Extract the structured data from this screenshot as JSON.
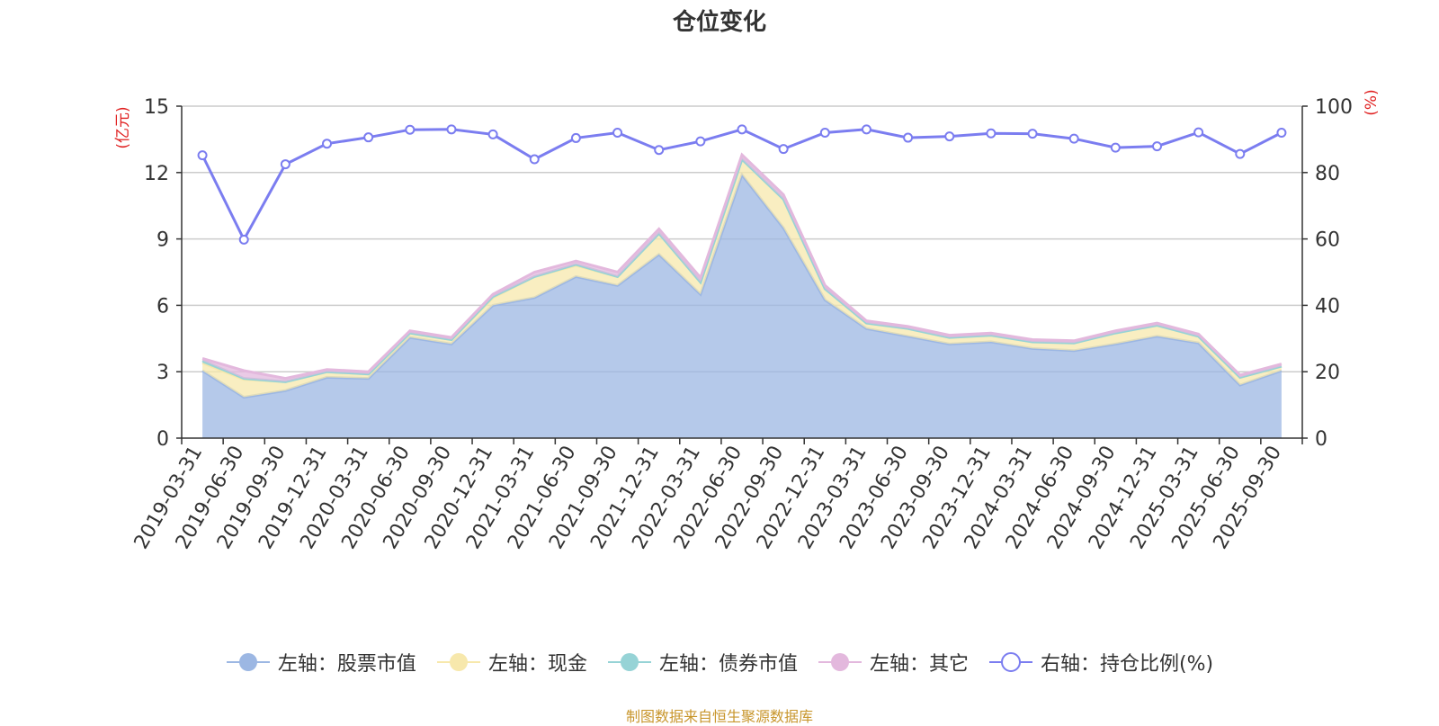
{
  "chart_data": {
    "type": "area",
    "title": "仓位变化",
    "left_axis_unit": "(亿元)",
    "right_axis_unit": "(%)",
    "left_ylim": [
      0,
      15
    ],
    "left_ticks": [
      0,
      3,
      6,
      9,
      12,
      15
    ],
    "right_ylim": [
      0,
      100
    ],
    "right_ticks": [
      0,
      20,
      40,
      60,
      80,
      100
    ],
    "grid": true,
    "legend_position": "bottom",
    "categories": [
      "2019-03-31",
      "2019-06-30",
      "2019-09-30",
      "2019-12-31",
      "2020-03-31",
      "2020-06-30",
      "2020-09-30",
      "2020-12-31",
      "2021-03-31",
      "2021-06-30",
      "2021-09-30",
      "2021-12-31",
      "2022-03-31",
      "2022-06-30",
      "2022-09-30",
      "2022-12-31",
      "2023-03-31",
      "2023-06-30",
      "2023-09-30",
      "2023-12-31",
      "2024-03-31",
      "2024-06-30",
      "2024-09-30",
      "2024-12-31",
      "2025-03-31",
      "2025-06-30",
      "2025-09-30"
    ],
    "series": [
      {
        "name": "左轴：股票市值",
        "axis": "left",
        "kind": "area",
        "color": "#9cb7e3",
        "values": [
          3.05,
          1.85,
          2.15,
          2.75,
          2.7,
          4.55,
          4.25,
          6.0,
          6.35,
          7.3,
          6.9,
          8.3,
          6.5,
          11.9,
          9.5,
          6.25,
          4.95,
          4.6,
          4.25,
          4.35,
          4.05,
          3.95,
          4.25,
          4.6,
          4.3,
          2.4,
          3.05
        ]
      },
      {
        "name": "左轴：现金",
        "axis": "left",
        "kind": "area",
        "color": "#f7e8ac",
        "values": [
          0.35,
          0.8,
          0.4,
          0.25,
          0.2,
          0.2,
          0.2,
          0.35,
          0.95,
          0.5,
          0.4,
          0.95,
          0.55,
          0.7,
          1.3,
          0.5,
          0.25,
          0.35,
          0.3,
          0.3,
          0.3,
          0.35,
          0.5,
          0.5,
          0.3,
          0.35,
          0.2
        ]
      },
      {
        "name": "左轴：债券市值",
        "axis": "left",
        "kind": "area",
        "color": "#96d3d6",
        "values": [
          0.1,
          0.05,
          0.0,
          0.0,
          0.0,
          0.0,
          0.0,
          0.05,
          0.0,
          0.05,
          0.0,
          0.0,
          0.0,
          0.0,
          0.0,
          0.0,
          0.0,
          0.0,
          0.0,
          0.0,
          0.0,
          0.0,
          0.0,
          0.0,
          0.0,
          0.0,
          0.0
        ]
      },
      {
        "name": "左轴：其它",
        "axis": "left",
        "kind": "area",
        "color": "#e3b8dd",
        "values": [
          0.1,
          0.35,
          0.15,
          0.1,
          0.1,
          0.1,
          0.1,
          0.1,
          0.2,
          0.15,
          0.2,
          0.2,
          0.2,
          0.2,
          0.2,
          0.15,
          0.1,
          0.1,
          0.1,
          0.1,
          0.1,
          0.1,
          0.1,
          0.1,
          0.1,
          0.1,
          0.1
        ]
      },
      {
        "name": "右轴：持仓比例(%)",
        "axis": "right",
        "kind": "line",
        "color": "#7b7df0",
        "values": [
          85.2,
          59.8,
          82.5,
          88.7,
          90.6,
          92.9,
          93.0,
          91.5,
          84.0,
          90.4,
          92.0,
          86.8,
          89.4,
          93.0,
          87.1,
          92.0,
          93.0,
          90.5,
          90.9,
          91.8,
          91.7,
          90.2,
          87.5,
          87.9,
          92.1,
          85.6,
          92.0
        ]
      }
    ]
  },
  "footer": {
    "source": "制图数据来自恒生聚源数据库"
  }
}
